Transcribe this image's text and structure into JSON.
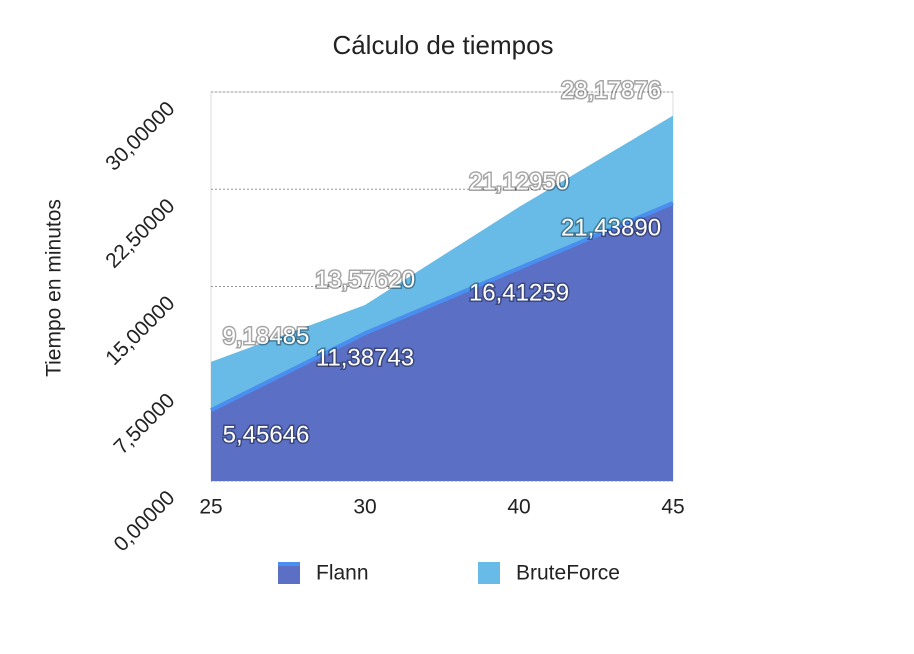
{
  "chart_data": {
    "type": "area",
    "title": "Cálculo de tiempos",
    "y_label": "Tiempo en minutos",
    "categories": [
      "25",
      "30",
      "40",
      "45"
    ],
    "series": [
      {
        "name": "BruteForce",
        "color": "#67bbe6",
        "values": [
          9.18485,
          13.5762,
          21.1295,
          28.17876
        ],
        "value_labels": [
          "9,18485",
          "13,57620",
          "21,12950",
          "28,17876"
        ]
      },
      {
        "name": "Flann",
        "color": "#5b6fc4",
        "values": [
          5.45646,
          11.38743,
          16.41259,
          21.4389
        ],
        "value_labels": [
          "5,45646",
          "11,38743",
          "16,41259",
          "21,43890"
        ]
      }
    ],
    "ylim": [
      0,
      30
    ],
    "yticks": [
      {
        "value": 0,
        "label": "0,00000"
      },
      {
        "value": 7.5,
        "label": "7,50000"
      },
      {
        "value": 15,
        "label": "15,00000"
      },
      {
        "value": 22.5,
        "label": "22,50000"
      },
      {
        "value": 30,
        "label": "30,00000"
      }
    ],
    "grid": true,
    "legend": "bottom"
  }
}
